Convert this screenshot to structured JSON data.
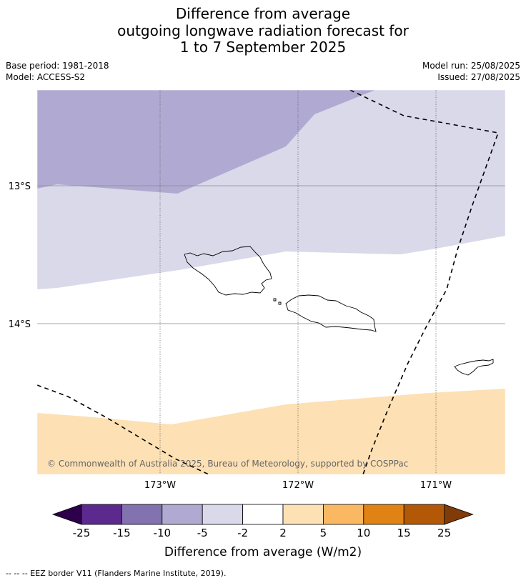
{
  "title": {
    "line1": "Difference from average",
    "line2": "outgoing longwave radiation forecast for",
    "line3": "1 to 7 September 2025"
  },
  "meta": {
    "base_period": "Base period: 1981-2018",
    "model": "Model: ACCESS-S2",
    "model_run": "Model run: 25/08/2025",
    "issued": "Issued: 27/08/2025"
  },
  "map": {
    "region": "Samoa",
    "lat_labels": [
      "13°S",
      "14°S"
    ],
    "lon_labels": [
      "173°W",
      "172°W",
      "171°W"
    ],
    "copyright": "© Commonwealth of Australia 2025, Bureau of Meteorology, supported by COSPPac",
    "colors": {
      "band_m10_m5": "#b0aad2",
      "band_m5_m2": "#d9d9ea",
      "band_m2_2": "#ffffff",
      "band_2_5": "#fde0b4"
    }
  },
  "colorbar": {
    "ticks": [
      "-25",
      "-15",
      "-10",
      "-5",
      "-2",
      "2",
      "5",
      "10",
      "15",
      "25"
    ],
    "colors": [
      "#5c2a8f",
      "#8272b0",
      "#b0aad2",
      "#d9d9ea",
      "#ffffff",
      "#fde0b4",
      "#fbb862",
      "#e08214",
      "#b35806"
    ],
    "under_color": "#2d004b",
    "over_color": "#7f3b08",
    "label": "Difference from average (W/m2)"
  },
  "legend": {
    "eez": "--  --  -- EEZ border V11 (Flanders Marine Institute, 2019)."
  }
}
